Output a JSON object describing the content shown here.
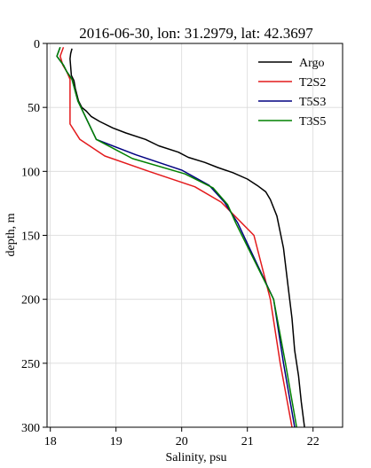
{
  "chart_data": {
    "type": "line",
    "title": "2016-06-30, lon: 31.2979,  lat: 42.3697",
    "xlabel": "Salinity, psu",
    "ylabel": "depth, m",
    "xlim": [
      17.95,
      22.45
    ],
    "ylim": [
      300,
      0
    ],
    "y_inverted": true,
    "grid": true,
    "legend_position": "top-right",
    "x_ticks": [
      18,
      19,
      20,
      21,
      22
    ],
    "y_ticks": [
      0,
      50,
      100,
      150,
      200,
      250,
      300
    ],
    "series": [
      {
        "name": "Argo",
        "color": "#000000",
        "points": [
          [
            18.33,
            4
          ],
          [
            18.31,
            8
          ],
          [
            18.3,
            12
          ],
          [
            18.31,
            18
          ],
          [
            18.32,
            25
          ],
          [
            18.36,
            29
          ],
          [
            18.38,
            35
          ],
          [
            18.43,
            45
          ],
          [
            18.48,
            50
          ],
          [
            18.55,
            53
          ],
          [
            18.62,
            57
          ],
          [
            18.75,
            61
          ],
          [
            18.95,
            66
          ],
          [
            19.15,
            70
          ],
          [
            19.45,
            75
          ],
          [
            19.65,
            80
          ],
          [
            19.95,
            85
          ],
          [
            20.1,
            89
          ],
          [
            20.35,
            93
          ],
          [
            20.55,
            97
          ],
          [
            20.78,
            101
          ],
          [
            21.0,
            106
          ],
          [
            21.15,
            111
          ],
          [
            21.28,
            116
          ],
          [
            21.35,
            122
          ],
          [
            21.45,
            135
          ],
          [
            21.55,
            160
          ],
          [
            21.62,
            190
          ],
          [
            21.68,
            215
          ],
          [
            21.72,
            240
          ],
          [
            21.78,
            260
          ],
          [
            21.82,
            280
          ],
          [
            21.87,
            300
          ]
        ]
      },
      {
        "name": "T2S2",
        "color": "#e31a1c",
        "points": [
          [
            18.2,
            3
          ],
          [
            18.15,
            10
          ],
          [
            18.19,
            17
          ],
          [
            18.25,
            22
          ],
          [
            18.3,
            28
          ],
          [
            18.3,
            63
          ],
          [
            18.45,
            75
          ],
          [
            18.83,
            88
          ],
          [
            19.5,
            100
          ],
          [
            20.2,
            112
          ],
          [
            20.6,
            124
          ],
          [
            21.1,
            150
          ],
          [
            21.35,
            200
          ],
          [
            21.5,
            250
          ],
          [
            21.68,
            300
          ]
        ]
      },
      {
        "name": "T5S3",
        "color": "#000080",
        "points": [
          [
            18.15,
            3
          ],
          [
            18.1,
            10
          ],
          [
            18.2,
            17
          ],
          [
            18.25,
            22
          ],
          [
            18.33,
            28
          ],
          [
            18.42,
            45
          ],
          [
            18.7,
            75
          ],
          [
            19.3,
            87
          ],
          [
            20.0,
            99
          ],
          [
            20.42,
            111
          ],
          [
            20.65,
            124
          ],
          [
            20.85,
            140
          ],
          [
            21.4,
            200
          ],
          [
            21.55,
            250
          ],
          [
            21.72,
            300
          ]
        ]
      },
      {
        "name": "T3S5",
        "color": "#008000",
        "points": [
          [
            18.15,
            3
          ],
          [
            18.1,
            10
          ],
          [
            18.2,
            17
          ],
          [
            18.25,
            22
          ],
          [
            18.33,
            28
          ],
          [
            18.42,
            45
          ],
          [
            18.7,
            75
          ],
          [
            19.25,
            90
          ],
          [
            20.05,
            102
          ],
          [
            20.48,
            113
          ],
          [
            20.7,
            126
          ],
          [
            20.82,
            140
          ],
          [
            21.4,
            200
          ],
          [
            21.58,
            250
          ],
          [
            21.75,
            300
          ]
        ]
      }
    ]
  }
}
